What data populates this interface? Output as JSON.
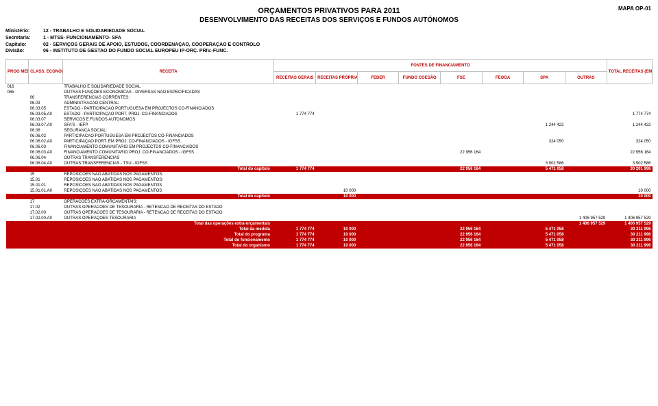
{
  "header": {
    "title1": "ORÇAMENTOS PRIVATIVOS PARA 2011",
    "title2": "DESENVOLVIMENTO DAS RECEITAS DOS SERVIÇOS E FUNDOS AUTÓNOMOS",
    "mapa": "MAPA OP-01",
    "meta": [
      {
        "label": "Ministério:",
        "value": "12 - TRABALHO E SOLIDARIEDADE SOCIAL"
      },
      {
        "label": "Secretaria:",
        "value": "1 - MTSS- FUNCIONAMENTO- SFA"
      },
      {
        "label": "Capítulo:",
        "value": "02 - SERVIÇOS GERAIS DE APOIO, ESTUDOS, COORDENAÇAO, COOPERAÇAO E CONTROLO"
      },
      {
        "label": "Divisão:",
        "value": "06 - INSTITUTO DE GESTAO DO FUNDO SOCIAL EUROPEU IP-ORÇ. PRIV.-FUNC."
      }
    ]
  },
  "columns": {
    "prog_med": "PROG MED",
    "class_econ": "CLASS. ECONÓMICA",
    "receita": "RECEITA",
    "fontes": "FONTES DE FINANCIAMENTO",
    "rec_gerais": "RECEITAS GERAIS",
    "rec_proprias": "RECEITAS PRÓPRIAS",
    "feder": "FEDER",
    "fundo_coesao": "FUNDO COESÃO",
    "fse": "FSE",
    "feoga": "FEOGA",
    "spa": "SPA",
    "outras": "OUTRAS",
    "total": "TOTAL RECEITAS (EM EUROS)"
  },
  "rows": [
    {
      "prog": "016",
      "code": "",
      "desc": "TRABALHO E SOLIDARIEDADE SOCIAL",
      "vals": [
        "",
        "",
        "",
        "",
        "",
        "",
        "",
        "",
        ""
      ],
      "total": false
    },
    {
      "prog": "065",
      "code": "",
      "desc": "OUTRAS FUNÇÕES ECONÓMICAS - DIVERSAS NÃO ESPECIFICADAS",
      "vals": [
        "",
        "",
        "",
        "",
        "",
        "",
        "",
        "",
        ""
      ],
      "total": false
    },
    {
      "prog": "",
      "code": "06",
      "desc": "TRANSFERENCIAS CORRENTES:",
      "vals": [
        "",
        "",
        "",
        "",
        "",
        "",
        "",
        "",
        ""
      ],
      "total": false
    },
    {
      "prog": "",
      "code": "06.03",
      "desc": "ADMINISTRACAO CENTRAL:",
      "vals": [
        "",
        "",
        "",
        "",
        "",
        "",
        "",
        "",
        ""
      ],
      "total": false
    },
    {
      "prog": "",
      "code": "06.03.05",
      "desc": "ESTADO - PARTICIPACAO PORTUGUESA EM PROJECTOS CO-FINANCIADOS",
      "vals": [
        "",
        "",
        "",
        "",
        "",
        "",
        "",
        "",
        ""
      ],
      "total": false
    },
    {
      "prog": "",
      "code": "06.03.05.A0",
      "desc": "ESTADO - PARTICIPAÇAO PORT. PROJ. CO-FINANCIADOS",
      "vals": [
        "1 774 774",
        "",
        "",
        "",
        "",
        "",
        "",
        "",
        "1 774 774"
      ],
      "total": false
    },
    {
      "prog": "",
      "code": "06.03.07",
      "desc": "SERVICOS E FUNDOS AUTONOMOS",
      "vals": [
        "",
        "",
        "",
        "",
        "",
        "",
        "",
        "",
        ""
      ],
      "total": false
    },
    {
      "prog": "",
      "code": "06.03.07.A0",
      "desc": "SFA'S - IEFP",
      "vals": [
        "",
        "",
        "",
        "",
        "",
        "",
        "1 244 422",
        "",
        "1 244 422"
      ],
      "total": false
    },
    {
      "prog": "",
      "code": "06.06",
      "desc": "SEGURANCA SOCIAL:",
      "vals": [
        "",
        "",
        "",
        "",
        "",
        "",
        "",
        "",
        ""
      ],
      "total": false
    },
    {
      "prog": "",
      "code": "06.06.02",
      "desc": "PARTICIPACAO PORTUGUESA EM PROJECTOS CO-FINANCIADOS",
      "vals": [
        "",
        "",
        "",
        "",
        "",
        "",
        "",
        "",
        ""
      ],
      "total": false
    },
    {
      "prog": "",
      "code": "06.06.02.A0",
      "desc": "PARTICIPAÇAO PORT. EM PROJ. CO-FINANCIADOS - IGFSS",
      "vals": [
        "",
        "",
        "",
        "",
        "",
        "",
        "324 050",
        "",
        "324 050"
      ],
      "total": false
    },
    {
      "prog": "",
      "code": "06.06.03",
      "desc": "FINANCIAMENTO COMUNITARIO EM PROJECTOS CO-FINANCIADOS",
      "vals": [
        "",
        "",
        "",
        "",
        "",
        "",
        "",
        "",
        ""
      ],
      "total": false
    },
    {
      "prog": "",
      "code": "06.06.03.A0",
      "desc": "FINANCIAMENTO COMUNITARIO PROJ. CO-FINANCIADOS - IGFSS",
      "vals": [
        "",
        "",
        "",
        "",
        "22 956 164",
        "",
        "",
        "",
        "22 956 164"
      ],
      "total": false
    },
    {
      "prog": "",
      "code": "06.06.04",
      "desc": "OUTRAS TRANSFERENCIAS",
      "vals": [
        "",
        "",
        "",
        "",
        "",
        "",
        "",
        "",
        ""
      ],
      "total": false
    },
    {
      "prog": "",
      "code": "06.06.04.A0",
      "desc": "OUTRAS TRANSFERENCIAS - TSU - IGFSS",
      "vals": [
        "",
        "",
        "",
        "",
        "",
        "",
        "3 902 586",
        "",
        "3 902 586"
      ],
      "total": false
    },
    {
      "prog": "",
      "code": "",
      "desc": "Total do capítulo",
      "vals": [
        "1 774 774",
        "",
        "",
        "",
        "22 956 164",
        "",
        "5 471 058",
        "",
        "30 201 996"
      ],
      "total": true
    },
    {
      "prog": "",
      "code": "15",
      "desc": "REPOSICOES NAO ABATIDAS NOS PAGAMENTOS:",
      "vals": [
        "",
        "",
        "",
        "",
        "",
        "",
        "",
        "",
        ""
      ],
      "total": false
    },
    {
      "prog": "",
      "code": "15.01",
      "desc": "REPOSICOES NAO ABATIDAS NOS PAGAMENTOS:",
      "vals": [
        "",
        "",
        "",
        "",
        "",
        "",
        "",
        "",
        ""
      ],
      "total": false
    },
    {
      "prog": "",
      "code": "15.01.01",
      "desc": "REPOSICOES NAO ABATIDAS NOS PAGAMENTOS",
      "vals": [
        "",
        "",
        "",
        "",
        "",
        "",
        "",
        "",
        ""
      ],
      "total": false
    },
    {
      "prog": "",
      "code": "15.01.01.A0",
      "desc": "REPOSIÇOES NAO ABATIDAS NOS PAGAMENTOS",
      "vals": [
        "",
        "10 000",
        "",
        "",
        "",
        "",
        "",
        "",
        "10 000"
      ],
      "total": false
    },
    {
      "prog": "",
      "code": "",
      "desc": "Total do capítulo",
      "vals": [
        "",
        "10 000",
        "",
        "",
        "",
        "",
        "",
        "",
        "10 000"
      ],
      "total": true
    },
    {
      "prog": "",
      "code": "17",
      "desc": "OPERACOES EXTRA-ORCAMENTAIS:",
      "vals": [
        "",
        "",
        "",
        "",
        "",
        "",
        "",
        "",
        ""
      ],
      "total": false
    },
    {
      "prog": "",
      "code": "17.02",
      "desc": "OUTRAS OPERACOES DE TESOURARIA - RETENCAO DE RECEITAS DO ESTADO",
      "vals": [
        "",
        "",
        "",
        "",
        "",
        "",
        "",
        "",
        ""
      ],
      "total": false
    },
    {
      "prog": "",
      "code": "17.02.00",
      "desc": "OUTRAS OPERACOES DE TESOURARIA - RETENCAO DE RECEITAS DO ESTADO",
      "vals": [
        "",
        "",
        "",
        "",
        "",
        "",
        "",
        "",
        ""
      ],
      "total": false
    },
    {
      "prog": "",
      "code": "17.02.00.A0",
      "desc": "OUTRAS OPERAÇOES TESOURARIA",
      "vals": [
        "",
        "",
        "",
        "",
        "",
        "",
        "",
        "1 406 957 529",
        "1 406 957 529"
      ],
      "total": false
    },
    {
      "prog": "",
      "code": "",
      "desc": "Total das operações extra-orçamentais",
      "vals": [
        "",
        "",
        "",
        "",
        "",
        "",
        "",
        "1 406 957 529",
        "1 406 957 529"
      ],
      "total": true
    },
    {
      "prog": "",
      "code": "",
      "desc": "Total da medida",
      "vals": [
        "1 774 774",
        "10 000",
        "",
        "",
        "22 956 164",
        "",
        "5 471 058",
        "",
        "30 211 996"
      ],
      "total": true
    },
    {
      "prog": "",
      "code": "",
      "desc": "Total do programa",
      "vals": [
        "1 774 774",
        "10 000",
        "",
        "",
        "22 956 164",
        "",
        "5 471 058",
        "",
        "30 211 996"
      ],
      "total": true
    },
    {
      "prog": "",
      "code": "",
      "desc": "Total do funcionamento",
      "vals": [
        "1 774 774",
        "10 000",
        "",
        "",
        "22 956 164",
        "",
        "5 471 058",
        "",
        "30 211 996"
      ],
      "total": true
    },
    {
      "prog": "",
      "code": "",
      "desc": "Total do organismo",
      "vals": [
        "1 774 774",
        "10 000",
        "",
        "",
        "22 956 164",
        "",
        "5 471 058",
        "",
        "30 211 996"
      ],
      "total": true
    }
  ],
  "style": {
    "accent": "#c00000",
    "border": "#c0c0c0",
    "bg": "#ffffff",
    "text": "#000000"
  }
}
